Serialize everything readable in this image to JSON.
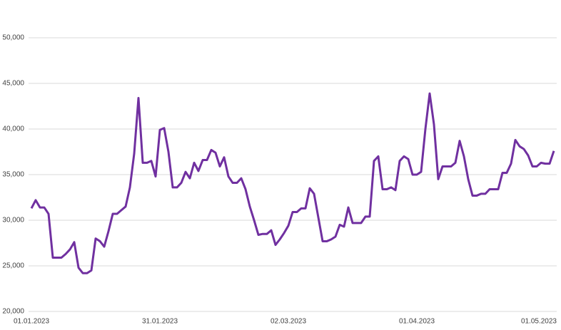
{
  "chart_data": {
    "type": "line",
    "color": "#7030a0",
    "grid": true,
    "x": [
      "01.01.2023",
      "02.01.2023",
      "03.01.2023",
      "04.01.2023",
      "05.01.2023",
      "06.01.2023",
      "07.01.2023",
      "08.01.2023",
      "09.01.2023",
      "10.01.2023",
      "11.01.2023",
      "12.01.2023",
      "13.01.2023",
      "14.01.2023",
      "15.01.2023",
      "16.01.2023",
      "17.01.2023",
      "18.01.2023",
      "19.01.2023",
      "20.01.2023",
      "21.01.2023",
      "22.01.2023",
      "23.01.2023",
      "24.01.2023",
      "25.01.2023",
      "26.01.2023",
      "27.01.2023",
      "28.01.2023",
      "29.01.2023",
      "30.01.2023",
      "31.01.2023",
      "01.02.2023",
      "02.02.2023",
      "03.02.2023",
      "04.02.2023",
      "05.02.2023",
      "06.02.2023",
      "07.02.2023",
      "08.02.2023",
      "09.02.2023",
      "10.02.2023",
      "11.02.2023",
      "12.02.2023",
      "13.02.2023",
      "14.02.2023",
      "15.02.2023",
      "16.02.2023",
      "17.02.2023",
      "18.02.2023",
      "19.02.2023",
      "20.02.2023",
      "21.02.2023",
      "22.02.2023",
      "23.02.2023",
      "24.02.2023",
      "25.02.2023",
      "26.02.2023",
      "27.02.2023",
      "28.02.2023",
      "01.03.2023",
      "02.03.2023",
      "03.03.2023",
      "04.03.2023",
      "05.03.2023",
      "06.03.2023",
      "07.03.2023",
      "08.03.2023",
      "09.03.2023",
      "10.03.2023",
      "11.03.2023",
      "12.03.2023",
      "13.03.2023",
      "14.03.2023",
      "15.03.2023",
      "16.03.2023",
      "17.03.2023",
      "18.03.2023",
      "19.03.2023",
      "20.03.2023",
      "21.03.2023",
      "22.03.2023",
      "23.03.2023",
      "24.03.2023",
      "25.03.2023",
      "26.03.2023",
      "27.03.2023",
      "28.03.2023",
      "29.03.2023",
      "30.03.2023",
      "31.03.2023",
      "01.04.2023",
      "02.04.2023",
      "03.04.2023",
      "04.04.2023",
      "05.04.2023",
      "06.04.2023",
      "07.04.2023",
      "08.04.2023",
      "09.04.2023",
      "10.04.2023",
      "11.04.2023",
      "12.04.2023",
      "13.04.2023",
      "14.04.2023",
      "15.04.2023",
      "16.04.2023",
      "17.04.2023",
      "18.04.2023",
      "19.04.2023",
      "20.04.2023",
      "21.04.2023",
      "22.04.2023",
      "23.04.2023",
      "24.04.2023",
      "25.04.2023",
      "26.04.2023",
      "27.04.2023",
      "28.04.2023",
      "29.04.2023",
      "30.04.2023",
      "01.05.2023",
      "02.05.2023",
      "03.05.2023"
    ],
    "values": [
      31300,
      32200,
      31400,
      31400,
      30700,
      25900,
      25900,
      25900,
      26300,
      26800,
      27600,
      24800,
      24200,
      24200,
      24500,
      28000,
      27700,
      27100,
      28800,
      30700,
      30700,
      31100,
      31500,
      33600,
      37300,
      43400,
      36300,
      36300,
      36500,
      34800,
      39900,
      40100,
      37500,
      33600,
      33600,
      34100,
      35300,
      34600,
      36300,
      35400,
      36600,
      36600,
      37700,
      37400,
      35900,
      36900,
      34800,
      34100,
      34100,
      34600,
      33400,
      31500,
      30000,
      28400,
      28500,
      28500,
      28900,
      27300,
      27900,
      28600,
      29400,
      30900,
      30900,
      31300,
      31300,
      33500,
      32900,
      30300,
      27700,
      27700,
      27900,
      28200,
      29500,
      29300,
      31400,
      29700,
      29700,
      29700,
      30400,
      30400,
      36500,
      37000,
      33400,
      33400,
      33600,
      33300,
      36500,
      37000,
      36700,
      35000,
      35000,
      35300,
      40000,
      43900,
      40500,
      34500,
      35900,
      35900,
      35900,
      36300,
      38700,
      37000,
      34500,
      32700,
      32700,
      32900,
      32900,
      33400,
      33400,
      33400,
      35200,
      35200,
      36200,
      38800,
      38100,
      37800,
      37100,
      35900,
      35900,
      36300,
      36200,
      36200,
      37600
    ],
    "xticks": [
      "01.01.2023",
      "31.01.2023",
      "02.03.2023",
      "01.04.2023",
      "01.05.2023"
    ],
    "ylim": [
      20000,
      50000
    ],
    "yticks": [
      {
        "value": 20000,
        "label": "20,000"
      },
      {
        "value": 25000,
        "label": "25,000"
      },
      {
        "value": 30000,
        "label": "30,000"
      },
      {
        "value": 35000,
        "label": "35,000"
      },
      {
        "value": 40000,
        "label": "40,000"
      },
      {
        "value": 45000,
        "label": "45,000"
      },
      {
        "value": 50000,
        "label": "50,000"
      }
    ]
  }
}
